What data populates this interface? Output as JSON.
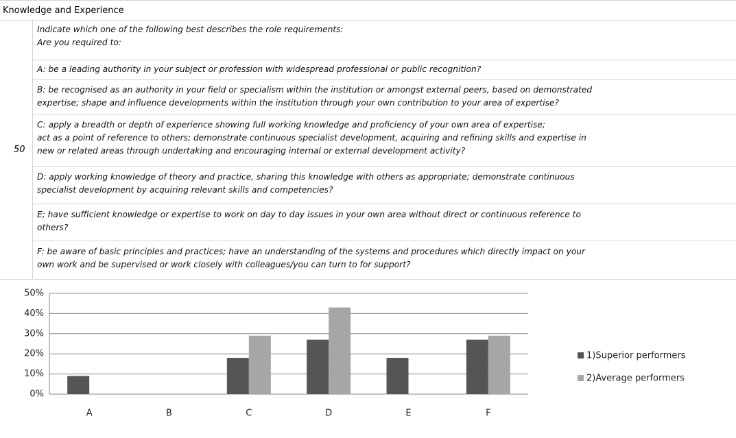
{
  "header": {
    "title": "Knowledge and Experience"
  },
  "table": {
    "score": "50",
    "intro": [
      "Indicate which one of the following best describes the role requirements:",
      "Are you required to:"
    ],
    "options": [
      [
        "A: be a leading authority in your subject or profession with widespread professional or public recognition?"
      ],
      [
        "B: be recognised as an authority in your field or specialism within the institution or amongst external peers, based on demonstrated",
        "expertise; shape and influence developments within the institution through your own contribution to your area of expertise?"
      ],
      [
        "C: apply a breadth or depth of experience showing full working knowledge and proficiency of your own area of expertise;",
        "act as a point of reference to others; demonstrate continuous specialist development, acquiring and refining skills and expertise in",
        "new or related areas through undertaking and encouraging internal or external development activity?"
      ],
      [
        "D: apply working knowledge of theory and practice, sharing this knowledge with others as appropriate; demonstrate continuous",
        "specialist development by acquiring relevant skills and competencies?"
      ],
      [
        "E; have sufficient knowledge or expertise to work on day to day issues in your own area without direct or continuous reference to",
        "others?"
      ],
      [
        "F: be aware of basic principles and practices; have an understanding of the systems and procedures which directly impact on your",
        "own work and be supervised or work closely with colleagues/you can turn to for support?"
      ]
    ]
  },
  "chart_data": {
    "type": "bar",
    "categories": [
      "A",
      "B",
      "C",
      "D",
      "E",
      "F"
    ],
    "series": [
      {
        "name": "1)Superior performers",
        "color": "#555555",
        "values": [
          9,
          0,
          18,
          27,
          18,
          27
        ]
      },
      {
        "name": "2)Average performers",
        "color": "#a6a6a6",
        "values": [
          0,
          0,
          29,
          43,
          0,
          29
        ]
      }
    ],
    "ylim": [
      0,
      50
    ],
    "yticks": [
      {
        "value": 0,
        "label": "0%"
      },
      {
        "value": 10,
        "label": "10%"
      },
      {
        "value": 20,
        "label": "20%"
      },
      {
        "value": 30,
        "label": "30%"
      },
      {
        "value": 40,
        "label": "40%"
      },
      {
        "value": 50,
        "label": "50%"
      }
    ],
    "grid": true,
    "legend": "right"
  }
}
